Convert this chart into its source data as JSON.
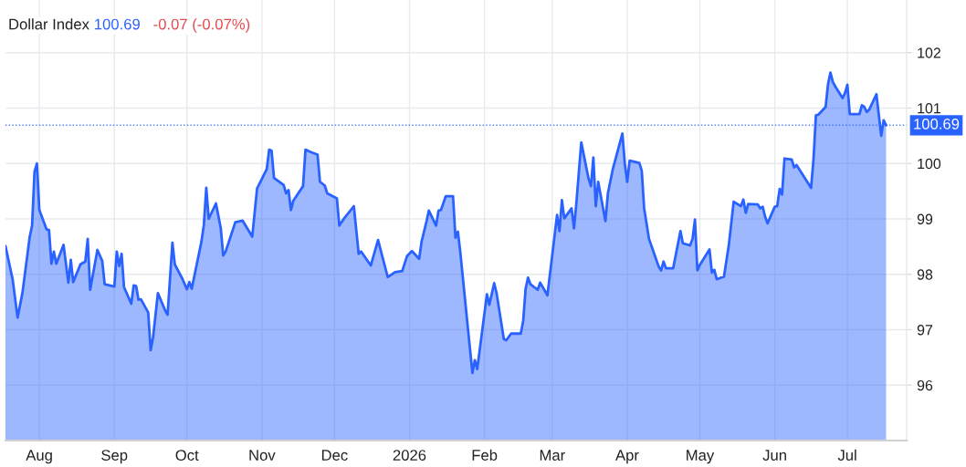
{
  "chart_data": {
    "type": "area",
    "title": "Dollar Index",
    "annotations": [
      "100.69",
      "-0.07 (-0.07%)"
    ],
    "x": [
      "2025-07-18",
      "2025-07-21",
      "2025-07-23",
      "2025-07-25",
      "2025-07-28",
      "2025-07-29",
      "2025-07-30",
      "2025-07-31",
      "2025-08-01",
      "2025-08-04",
      "2025-08-05",
      "2025-08-06",
      "2025-08-07",
      "2025-08-08",
      "2025-08-11",
      "2025-08-13",
      "2025-08-14",
      "2025-08-15",
      "2025-08-18",
      "2025-08-20",
      "2025-08-21",
      "2025-08-22",
      "2025-08-25",
      "2025-08-27",
      "2025-08-28",
      "2025-09-01",
      "2025-09-02",
      "2025-09-03",
      "2025-09-04",
      "2025-09-05",
      "2025-09-08",
      "2025-09-09",
      "2025-09-10",
      "2025-09-11",
      "2025-09-12",
      "2025-09-15",
      "2025-09-16",
      "2025-09-17",
      "2025-09-19",
      "2025-09-22",
      "2025-09-23",
      "2025-09-25",
      "2025-09-26",
      "2025-09-29",
      "2025-10-01",
      "2025-10-02",
      "2025-10-03",
      "2025-10-07",
      "2025-10-08",
      "2025-10-09",
      "2025-10-10",
      "2025-10-13",
      "2025-10-15",
      "2025-10-16",
      "2025-10-17",
      "2025-10-21",
      "2025-10-24",
      "2025-10-28",
      "2025-10-30",
      "2025-11-03",
      "2025-11-04",
      "2025-11-05",
      "2025-11-06",
      "2025-11-10",
      "2025-11-11",
      "2025-11-12",
      "2025-11-13",
      "2025-11-14",
      "2025-11-18",
      "2025-11-19",
      "2025-11-21",
      "2025-11-24",
      "2025-11-25",
      "2025-11-27",
      "2025-11-28",
      "2025-12-02",
      "2025-12-03",
      "2025-12-05",
      "2025-12-09",
      "2025-12-11",
      "2025-12-12",
      "2025-12-16",
      "2025-12-19",
      "2025-12-23",
      "2025-12-26",
      "2025-12-29",
      "2025-12-31",
      "2026-01-02",
      "2026-01-05",
      "2026-01-06",
      "2026-01-08",
      "2026-01-09",
      "2026-01-12",
      "2026-01-13",
      "2026-01-14",
      "2026-01-16",
      "2026-01-19",
      "2026-01-20",
      "2026-01-21",
      "2026-01-22",
      "2026-01-27",
      "2026-01-28",
      "2026-01-29",
      "2026-02-02",
      "2026-02-03",
      "2026-02-05",
      "2026-02-06",
      "2026-02-09",
      "2026-02-10",
      "2026-02-12",
      "2026-02-16",
      "2026-02-17",
      "2026-02-18",
      "2026-02-19",
      "2026-02-20",
      "2026-02-23",
      "2026-02-24",
      "2026-02-26",
      "2026-02-27",
      "2026-03-03",
      "2026-03-04",
      "2026-03-05",
      "2026-03-06",
      "2026-03-09",
      "2026-03-10",
      "2026-03-11",
      "2026-03-13",
      "2026-03-16",
      "2026-03-17",
      "2026-03-18",
      "2026-03-19",
      "2026-03-20",
      "2026-03-23",
      "2026-03-24",
      "2026-03-26",
      "2026-03-30",
      "2026-03-31",
      "2026-04-01",
      "2026-04-02",
      "2026-04-06",
      "2026-04-07",
      "2026-04-08",
      "2026-04-10",
      "2026-04-14",
      "2026-04-15",
      "2026-04-16",
      "2026-04-17",
      "2026-04-20",
      "2026-04-23",
      "2026-04-24",
      "2026-04-27",
      "2026-04-28",
      "2026-04-29",
      "2026-04-30",
      "2026-05-01",
      "2026-05-05",
      "2026-05-06",
      "2026-05-07",
      "2026-05-08",
      "2026-05-11",
      "2026-05-13",
      "2026-05-15",
      "2026-05-18",
      "2026-05-19",
      "2026-05-20",
      "2026-05-21",
      "2026-05-25",
      "2026-05-26",
      "2026-05-27",
      "2026-05-28",
      "2026-05-29",
      "2026-06-01",
      "2026-06-02",
      "2026-06-03",
      "2026-06-04",
      "2026-06-05",
      "2026-06-08",
      "2026-06-09",
      "2026-06-10",
      "2026-06-16",
      "2026-06-17",
      "2026-06-18",
      "2026-06-19",
      "2026-06-22",
      "2026-06-23",
      "2026-06-24",
      "2026-06-25",
      "2026-06-26",
      "2026-06-29",
      "2026-06-30",
      "2026-07-01",
      "2026-07-02",
      "2026-07-06",
      "2026-07-07",
      "2026-07-08",
      "2026-07-09",
      "2026-07-10",
      "2026-07-13",
      "2026-07-15",
      "2026-07-16",
      "2026-07-17"
    ],
    "series": [
      {
        "color": "#2962ff",
        "values": [
          98.51,
          97.9,
          97.22,
          97.66,
          98.67,
          98.88,
          99.85,
          100.0,
          99.16,
          98.81,
          98.8,
          98.19,
          98.41,
          98.19,
          98.53,
          97.85,
          98.26,
          97.86,
          98.18,
          98.23,
          98.64,
          97.72,
          98.44,
          98.24,
          97.82,
          97.78,
          98.41,
          98.15,
          98.37,
          97.77,
          97.47,
          97.8,
          97.79,
          97.54,
          97.55,
          97.31,
          96.63,
          96.86,
          97.66,
          97.35,
          97.27,
          98.57,
          98.18,
          97.93,
          97.73,
          97.86,
          97.74,
          98.59,
          98.89,
          99.56,
          99.0,
          99.28,
          98.83,
          98.34,
          98.41,
          98.94,
          98.97,
          98.68,
          99.55,
          99.9,
          100.25,
          100.23,
          99.74,
          99.61,
          99.46,
          99.52,
          99.16,
          99.33,
          99.59,
          100.25,
          100.21,
          100.16,
          99.67,
          99.6,
          99.46,
          99.37,
          98.88,
          99.01,
          99.23,
          98.37,
          98.41,
          98.16,
          98.62,
          97.95,
          98.04,
          98.06,
          98.33,
          98.42,
          98.28,
          98.59,
          98.95,
          99.15,
          98.88,
          99.15,
          99.16,
          99.41,
          99.41,
          98.66,
          98.77,
          98.4,
          96.22,
          96.45,
          96.29,
          97.64,
          97.45,
          97.84,
          97.66,
          96.83,
          96.81,
          96.93,
          96.93,
          97.16,
          97.74,
          97.94,
          97.82,
          97.72,
          97.85,
          97.7,
          97.62,
          99.07,
          98.78,
          99.34,
          99.01,
          99.19,
          98.83,
          99.3,
          100.38,
          99.73,
          99.59,
          100.11,
          99.23,
          99.67,
          98.96,
          99.46,
          99.89,
          100.54,
          100.0,
          99.67,
          100.05,
          100.01,
          99.87,
          99.19,
          98.64,
          98.14,
          98.07,
          98.23,
          98.11,
          98.11,
          98.78,
          98.56,
          98.52,
          98.64,
          98.99,
          98.07,
          98.17,
          98.45,
          98.03,
          98.08,
          97.91,
          97.96,
          98.53,
          99.31,
          99.23,
          99.35,
          99.11,
          99.27,
          99.26,
          99.19,
          99.22,
          99.04,
          98.92,
          99.22,
          99.23,
          99.54,
          99.44,
          100.09,
          100.07,
          99.93,
          99.97,
          99.56,
          100.08,
          100.87,
          100.88,
          101.02,
          101.43,
          101.64,
          101.47,
          101.39,
          101.18,
          101.27,
          101.42,
          100.89,
          100.89,
          101.05,
          101.02,
          100.93,
          100.97,
          101.25,
          100.5,
          100.78,
          100.69
        ]
      }
    ],
    "xlim": [
      "2025-07-18",
      "2026-07-25T12:00"
    ],
    "ylim": [
      95.0,
      102.95
    ],
    "xticks": [
      {
        "value": "2025-08-01",
        "label": "Aug"
      },
      {
        "value": "2025-09-01",
        "label": "Sep"
      },
      {
        "value": "2025-10-01",
        "label": "Oct"
      },
      {
        "value": "2025-11-01",
        "label": "Nov"
      },
      {
        "value": "2025-12-01",
        "label": "Dec"
      },
      {
        "value": "2026-01-01",
        "label": "2026"
      },
      {
        "value": "2026-02-01",
        "label": "Feb"
      },
      {
        "value": "2026-03-01",
        "label": "Mar"
      },
      {
        "value": "2026-04-01",
        "label": "Apr"
      },
      {
        "value": "2026-05-01",
        "label": "May"
      },
      {
        "value": "2026-06-01",
        "label": "Jun"
      },
      {
        "value": "2026-07-01",
        "label": "Jul"
      }
    ],
    "yticks": [
      96,
      97,
      98,
      99,
      100,
      101,
      102
    ],
    "grid": true,
    "ref_lines": [
      {
        "axis": "y",
        "value": 100.69,
        "label": "100.69",
        "color": "#2962ff",
        "line_style": "dotted"
      }
    ]
  }
}
